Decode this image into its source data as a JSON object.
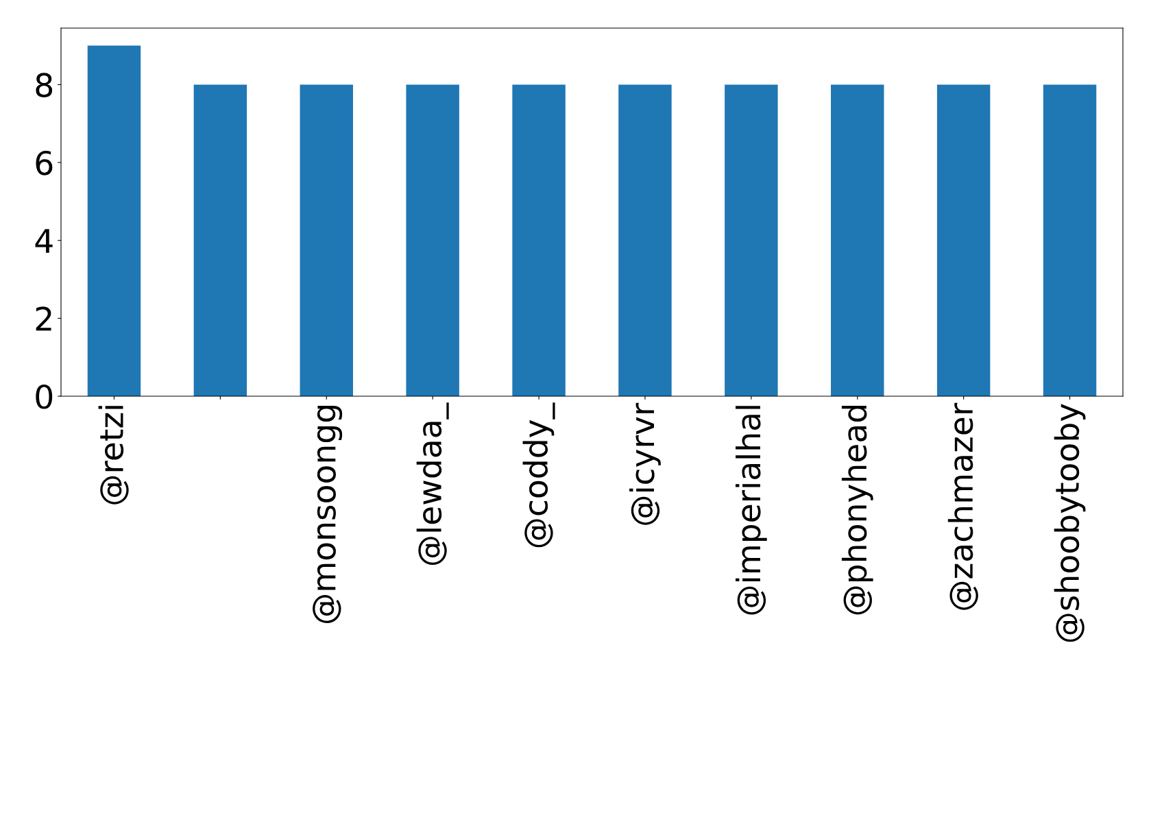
{
  "chart_data": {
    "type": "bar",
    "categories": [
      "@retzi",
      null,
      "@monsoongg",
      "@lewdaa_",
      "@coddy_",
      "@icyrvr",
      "@imperialhal",
      "@phonyhead",
      "@zachmazer",
      "@shoobytooby"
    ],
    "values": [
      9,
      8,
      8,
      8,
      8,
      8,
      8,
      8,
      8,
      8
    ],
    "color": "#1f77b4",
    "ylim": [
      0,
      9.45
    ],
    "yticks": [
      0,
      2,
      4,
      6,
      8
    ],
    "grid": false,
    "legend": false
  }
}
